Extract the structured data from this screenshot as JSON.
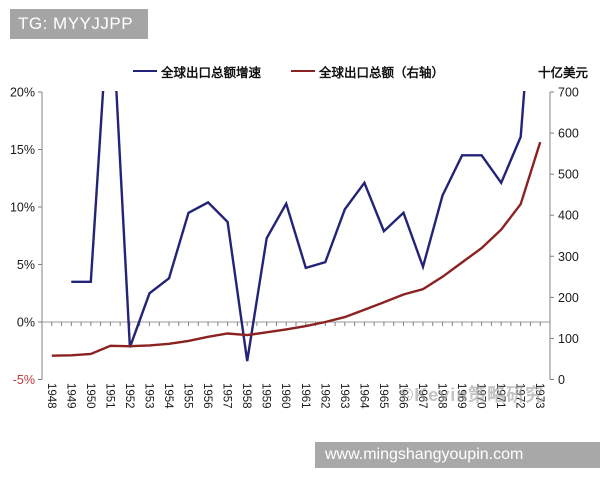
{
  "header": {
    "tag": "TG: MYYJJPP"
  },
  "footer": {
    "url": "www.mingshangyoupin.com"
  },
  "watermark": "©Kevin策略研究",
  "ui_colors": {
    "badge_gray": "#a5a5a5",
    "watermark_gray": "#9e9e9e",
    "axis_gray": "#808080",
    "zero_line_gray": "#999999",
    "negative_tick_red": "#c03a3a",
    "tick_text_black": "#1a1a1a"
  },
  "chart_data": {
    "type": "line",
    "x": [
      1948,
      1949,
      1950,
      1951,
      1952,
      1953,
      1954,
      1955,
      1956,
      1957,
      1958,
      1959,
      1960,
      1961,
      1962,
      1963,
      1964,
      1965,
      1966,
      1967,
      1968,
      1969,
      1970,
      1971,
      1972,
      1973
    ],
    "series": [
      {
        "name": "全球出口总额增速",
        "axis": "left",
        "color": "#232377",
        "values": [
          null,
          3.5,
          3.5,
          30,
          -2.2,
          2.5,
          3.8,
          9.5,
          10.4,
          8.7,
          -3.4,
          7.3,
          10.3,
          4.7,
          5.2,
          9.8,
          12.1,
          7.9,
          9.5,
          4.8,
          11.0,
          14.5,
          14.5,
          12.1,
          16.1,
          38
        ]
      },
      {
        "name": "全球出口总额（右轴）",
        "axis": "right",
        "color": "#8b2121",
        "values": [
          58,
          59,
          62,
          82,
          81,
          83,
          87,
          94,
          104,
          112,
          108,
          115,
          122,
          130,
          140,
          152,
          170,
          188,
          207,
          220,
          250,
          285,
          320,
          365,
          427,
          578
        ]
      }
    ],
    "left_axis": {
      "format": "percent",
      "min": -5,
      "max": 20,
      "ticks": [
        20,
        15,
        10,
        5,
        0,
        -5
      ]
    },
    "right_axis": {
      "title": "十亿美元",
      "min": 0,
      "max": 700,
      "ticks": [
        700,
        600,
        500,
        400,
        300,
        200,
        100,
        0
      ]
    },
    "gridline_at": 0,
    "legend_position": "top",
    "notes": "blue growth-rate line is clipped at the 20% axis top for 1951 and 1973"
  }
}
